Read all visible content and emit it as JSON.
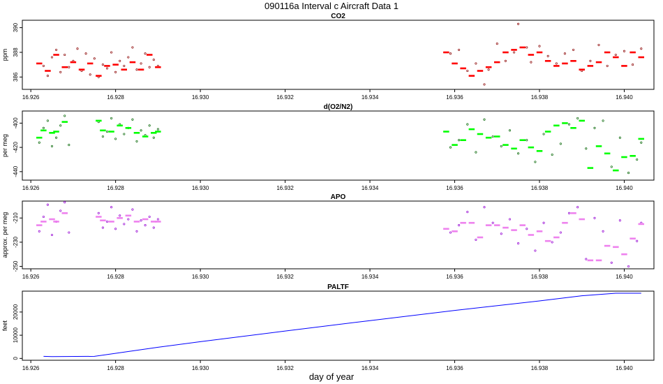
{
  "figure": {
    "title": "090116a   Interval c Aircraft Data 1",
    "xlabel": "day of year"
  },
  "chart_data": [
    {
      "type": "scatter",
      "title": "CO2",
      "ylabel": "ppm",
      "xlim": [
        16.9258,
        16.9407
      ],
      "ylim": [
        385.0,
        390.6
      ],
      "yticks": [
        386,
        388,
        390
      ],
      "xticks": [
        16.926,
        16.928,
        16.93,
        16.932,
        16.934,
        16.936,
        16.938,
        16.94
      ],
      "xtick_labels": [
        "16.926",
        "16.928",
        "16.930",
        "16.932",
        "16.934",
        "16.936",
        "16.938",
        "16.940"
      ],
      "grid": false,
      "series": [
        {
          "kind": "points",
          "color": "#8b0000",
          "x": [
            16.9263,
            16.9264,
            16.9265,
            16.9266,
            16.9267,
            16.9268,
            16.9269,
            16.927,
            16.9271,
            16.9272,
            16.9273,
            16.9274,
            16.9275,
            16.9276,
            16.9277,
            16.9278,
            16.9279,
            16.928,
            16.9281,
            16.9282,
            16.9283,
            16.9284,
            16.9285,
            16.9286,
            16.9287,
            16.9288,
            16.9289,
            16.929,
            16.9359,
            16.9361,
            16.9363,
            16.9365,
            16.9367,
            16.9368,
            16.937,
            16.9372,
            16.9374,
            16.9375,
            16.9377,
            16.9378,
            16.938,
            16.9382,
            16.9384,
            16.9386,
            16.9388,
            16.939,
            16.9392,
            16.9394,
            16.9396,
            16.9398,
            16.94,
            16.9402,
            16.9404
          ],
          "y": [
            386.9,
            386.1,
            387.6,
            388.2,
            386.4,
            387.8,
            386.8,
            387.3,
            388.3,
            386.5,
            387.9,
            386.2,
            387.5,
            386.0,
            387.0,
            386.7,
            388.0,
            386.4,
            387.3,
            386.9,
            387.6,
            388.4,
            386.6,
            387.1,
            387.9,
            386.8,
            387.4,
            386.9,
            387.9,
            388.2,
            386.5,
            387.1,
            385.4,
            386.6,
            388.7,
            387.3,
            388.0,
            390.3,
            388.4,
            387.2,
            388.5,
            387.7,
            387.1,
            387.9,
            388.2,
            386.5,
            387.3,
            388.6,
            386.9,
            387.8,
            388.1,
            387.0,
            388.3
          ]
        },
        {
          "kind": "segments",
          "color": "#ff0000",
          "x": [
            16.9262,
            16.9264,
            16.9266,
            16.9268,
            16.927,
            16.9272,
            16.9274,
            16.9276,
            16.9278,
            16.928,
            16.9282,
            16.9284,
            16.9286,
            16.9288,
            16.929,
            16.9358,
            16.936,
            16.9362,
            16.9364,
            16.9366,
            16.9368,
            16.937,
            16.9372,
            16.9374,
            16.9376,
            16.9378,
            16.938,
            16.9382,
            16.9384,
            16.9386,
            16.9388,
            16.939,
            16.9392,
            16.9394,
            16.9396,
            16.9398,
            16.94,
            16.9402,
            16.9404
          ],
          "y": [
            387.1,
            386.5,
            387.8,
            386.8,
            387.2,
            386.6,
            387.1,
            386.1,
            386.9,
            387.0,
            386.6,
            387.2,
            386.6,
            387.8,
            386.8,
            388.0,
            387.1,
            386.7,
            386.1,
            386.5,
            386.8,
            387.2,
            388.0,
            388.2,
            388.4,
            387.8,
            388.0,
            387.3,
            386.9,
            387.1,
            387.3,
            386.6,
            386.9,
            387.2,
            388.0,
            387.6,
            386.9,
            388.0,
            387.6
          ]
        }
      ]
    },
    {
      "type": "scatter",
      "title": "d(O2/N2)",
      "ylabel": "per meg",
      "xlim": [
        16.9258,
        16.9407
      ],
      "ylim": [
        -447,
        -390
      ],
      "yticks": [
        -440,
        -420,
        -400
      ],
      "xticks": [
        16.926,
        16.928,
        16.93,
        16.932,
        16.934,
        16.936,
        16.938,
        16.94
      ],
      "xtick_labels": [
        "16.926",
        "16.928",
        "16.930",
        "16.932",
        "16.934",
        "16.936",
        "16.938",
        "16.940"
      ],
      "grid": false,
      "series": [
        {
          "kind": "points",
          "color": "#006400",
          "x": [
            16.9262,
            16.9263,
            16.9264,
            16.9265,
            16.9266,
            16.9267,
            16.9268,
            16.9269,
            16.9276,
            16.9277,
            16.9278,
            16.9279,
            16.928,
            16.9281,
            16.9282,
            16.9283,
            16.9284,
            16.9285,
            16.9286,
            16.9287,
            16.9288,
            16.9289,
            16.929,
            16.9359,
            16.9361,
            16.9363,
            16.9365,
            16.9367,
            16.9369,
            16.9371,
            16.9373,
            16.9375,
            16.9377,
            16.9379,
            16.9381,
            16.9383,
            16.9385,
            16.9387,
            16.9389,
            16.9391,
            16.9393,
            16.9395,
            16.9397,
            16.9399,
            16.9401,
            16.9403,
            16.9404
          ],
          "y": [
            -416,
            -404,
            -398,
            -419,
            -412,
            -402,
            -394,
            -418,
            -399,
            -411,
            -407,
            -396,
            -413,
            -401,
            -409,
            -404,
            -397,
            -415,
            -406,
            -410,
            -402,
            -412,
            -405,
            -420,
            -414,
            -401,
            -424,
            -397,
            -411,
            -419,
            -406,
            -425,
            -414,
            -432,
            -409,
            -426,
            -417,
            -401,
            -396,
            -421,
            -404,
            -398,
            -436,
            -412,
            -441,
            -430,
            -416
          ]
        },
        {
          "kind": "segments",
          "color": "#00ff00",
          "x": [
            16.9262,
            16.9263,
            16.9265,
            16.9266,
            16.9268,
            16.9276,
            16.9277,
            16.9279,
            16.9281,
            16.9283,
            16.9285,
            16.9287,
            16.9289,
            16.929,
            16.9358,
            16.936,
            16.9362,
            16.9364,
            16.9366,
            16.9368,
            16.937,
            16.9372,
            16.9374,
            16.9376,
            16.9378,
            16.938,
            16.9382,
            16.9384,
            16.9386,
            16.9388,
            16.939,
            16.9392,
            16.9394,
            16.9396,
            16.9398,
            16.94,
            16.9402,
            16.9404
          ],
          "y": [
            -412,
            -406,
            -408,
            -407,
            -399,
            -398,
            -406,
            -407,
            -402,
            -404,
            -408,
            -411,
            -408,
            -407,
            -407,
            -418,
            -414,
            -405,
            -409,
            -412,
            -411,
            -418,
            -421,
            -414,
            -420,
            -423,
            -407,
            -402,
            -400,
            -404,
            -398,
            -437,
            -419,
            -425,
            -439,
            -428,
            -427,
            -413
          ]
        }
      ]
    },
    {
      "type": "scatter",
      "title": "APO",
      "ylabel": "approx. per meg",
      "xlim": [
        16.9258,
        16.9407
      ],
      "ylim": [
        -252,
        -196
      ],
      "yticks": [
        -250,
        -230,
        -210
      ],
      "xticks": [
        16.926,
        16.928,
        16.93,
        16.932,
        16.934,
        16.936,
        16.938,
        16.94
      ],
      "xtick_labels": [
        "16.926",
        "16.928",
        "16.930",
        "16.932",
        "16.934",
        "16.936",
        "16.938",
        "16.940"
      ],
      "grid": false,
      "series": [
        {
          "kind": "points",
          "color": "#9400d3",
          "x": [
            16.9262,
            16.9263,
            16.9264,
            16.9265,
            16.9266,
            16.9267,
            16.9268,
            16.9269,
            16.9276,
            16.9277,
            16.9278,
            16.9279,
            16.928,
            16.9281,
            16.9282,
            16.9283,
            16.9284,
            16.9285,
            16.9286,
            16.9287,
            16.9288,
            16.9289,
            16.929,
            16.9359,
            16.9361,
            16.9363,
            16.9365,
            16.9367,
            16.9369,
            16.9371,
            16.9373,
            16.9375,
            16.9377,
            16.9379,
            16.9381,
            16.9383,
            16.9385,
            16.9387,
            16.9389,
            16.9391,
            16.9393,
            16.9395,
            16.9397,
            16.9399,
            16.9401,
            16.9403,
            16.9404
          ],
          "y": [
            -221,
            -209,
            -199,
            -224,
            -213,
            -204,
            -197,
            -222,
            -206,
            -218,
            -213,
            -201,
            -219,
            -208,
            -215,
            -211,
            -203,
            -221,
            -212,
            -216,
            -209,
            -218,
            -211,
            -222,
            -216,
            -205,
            -228,
            -201,
            -214,
            -223,
            -211,
            -231,
            -219,
            -237,
            -214,
            -230,
            -222,
            -206,
            -201,
            -244,
            -210,
            -221,
            -247,
            -212,
            -250,
            -229,
            -214
          ]
        },
        {
          "kind": "segments",
          "color": "#ee82ee",
          "x": [
            16.9262,
            16.9263,
            16.9265,
            16.9266,
            16.9268,
            16.9276,
            16.9277,
            16.9279,
            16.9281,
            16.9283,
            16.9285,
            16.9287,
            16.9289,
            16.929,
            16.9358,
            16.936,
            16.9362,
            16.9364,
            16.9366,
            16.9368,
            16.937,
            16.9372,
            16.9374,
            16.9376,
            16.9378,
            16.938,
            16.9382,
            16.9384,
            16.9386,
            16.9388,
            16.939,
            16.9392,
            16.9394,
            16.9396,
            16.9398,
            16.94,
            16.9402,
            16.9404
          ],
          "y": [
            -216,
            -213,
            -211,
            -213,
            -206,
            -209,
            -212,
            -213,
            -210,
            -208,
            -213,
            -211,
            -213,
            -213,
            -219,
            -221,
            -214,
            -214,
            -226,
            -216,
            -216,
            -218,
            -220,
            -216,
            -224,
            -221,
            -229,
            -226,
            -214,
            -206,
            -211,
            -245,
            -245,
            -233,
            -234,
            -240,
            -227,
            -215
          ]
        }
      ]
    },
    {
      "type": "line",
      "title": "PALTF",
      "ylabel": "feet",
      "xlim": [
        16.9258,
        16.9407
      ],
      "ylim": [
        -800,
        29000
      ],
      "yticks": [
        0,
        10000,
        20000
      ],
      "xticks": [
        16.926,
        16.928,
        16.93,
        16.932,
        16.934,
        16.936,
        16.938,
        16.94
      ],
      "xtick_labels": [
        "16.926",
        "16.928",
        "16.930",
        "16.932",
        "16.934",
        "16.936",
        "16.938",
        "16.940"
      ],
      "grid": false,
      "series": [
        {
          "kind": "line",
          "color": "#0000ff",
          "x": [
            16.9263,
            16.9265,
            16.9275,
            16.929,
            16.93,
            16.932,
            16.934,
            16.936,
            16.938,
            16.939,
            16.9398,
            16.9404
          ],
          "y": [
            900,
            800,
            900,
            4800,
            7200,
            11800,
            16300,
            20700,
            24800,
            27000,
            28100,
            28100
          ]
        }
      ]
    }
  ]
}
